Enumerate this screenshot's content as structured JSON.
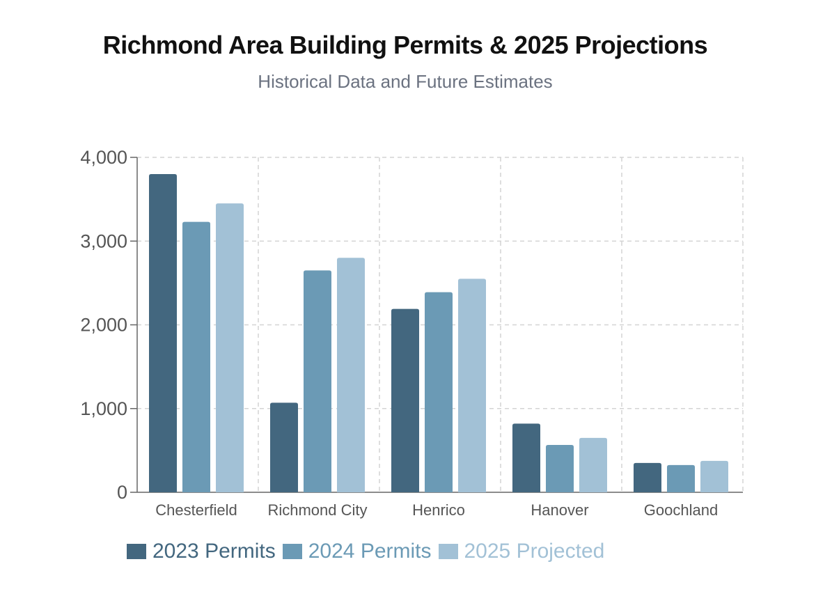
{
  "header": {
    "title": "Richmond Area Building Permits & 2025 Projections",
    "subtitle": "Historical Data and Future Estimates"
  },
  "chart_data": {
    "type": "bar",
    "title": "Richmond Area Building Permits & 2025 Projections",
    "subtitle": "Historical Data and Future Estimates",
    "xlabel": "",
    "ylabel": "",
    "categories": [
      "Chesterfield",
      "Richmond City",
      "Henrico",
      "Hanover",
      "Goochland"
    ],
    "series": [
      {
        "name": "2023 Permits",
        "color": "#43677f",
        "values": [
          3800,
          1070,
          2190,
          820,
          350
        ]
      },
      {
        "name": "2024 Permits",
        "color": "#6b9ab5",
        "values": [
          3230,
          2650,
          2390,
          565,
          325
        ]
      },
      {
        "name": "2025 Projected",
        "color": "#a2c1d6",
        "values": [
          3450,
          2800,
          2550,
          650,
          375
        ]
      }
    ],
    "ylim": [
      0,
      4000
    ],
    "yticks": [
      0,
      1000,
      2000,
      3000,
      4000
    ],
    "ytick_labels": [
      "0",
      "1,000",
      "2,000",
      "3,000",
      "4,000"
    ],
    "grid": true,
    "legend_position": "bottom-left"
  }
}
